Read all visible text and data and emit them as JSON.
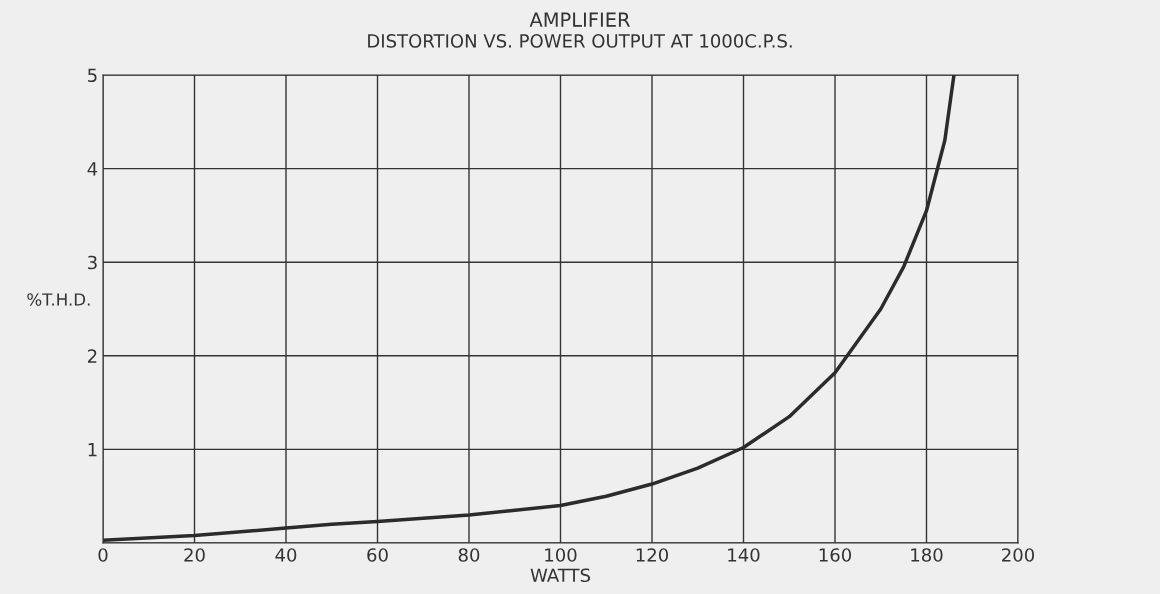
{
  "chart_data": {
    "type": "line",
    "title": "AMPLIFIER",
    "subtitle": "DISTORTION VS. POWER OUTPUT AT 1000C.P.S.",
    "xlabel": "WATTS",
    "ylabel": "%T.H.D.",
    "xlim": [
      0,
      200
    ],
    "xticks": [
      0,
      20,
      40,
      60,
      80,
      100,
      120,
      140,
      160,
      180,
      200
    ],
    "ylim": [
      0,
      5
    ],
    "yticks": [
      {
        "value": 0,
        "label": null
      },
      1,
      2,
      3,
      4,
      5
    ],
    "grid": true,
    "marker": "none",
    "line_style": "solid",
    "series": [
      {
        "color": "#2b2b2b",
        "x": [
          0,
          20,
          40,
          50,
          60,
          80,
          100,
          110,
          120,
          130,
          140,
          150,
          160,
          170,
          175,
          180,
          184,
          186
        ],
        "values": [
          0.03,
          0.08,
          0.16,
          0.2,
          0.23,
          0.3,
          0.4,
          0.5,
          0.63,
          0.8,
          1.02,
          1.35,
          1.82,
          2.5,
          2.95,
          3.55,
          4.3,
          5.0
        ]
      }
    ]
  }
}
